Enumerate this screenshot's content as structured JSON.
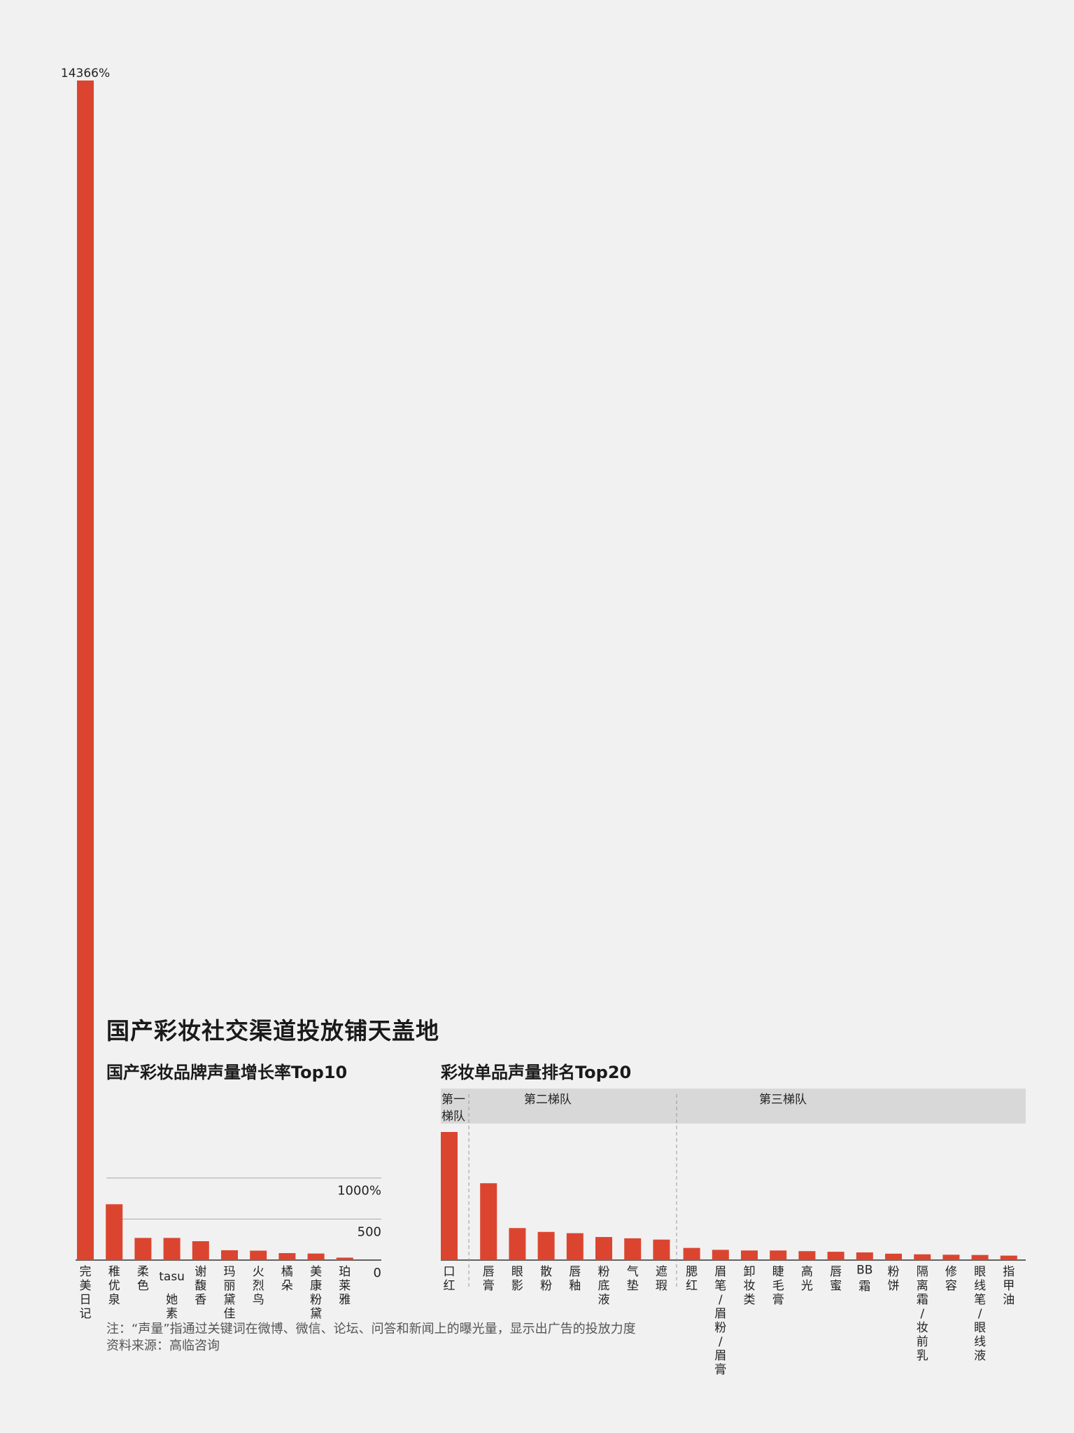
{
  "header": {
    "title": "国产彩妆社交渠道投放铺天盖地"
  },
  "chart_data": [
    {
      "type": "bar",
      "title": "国产彩妆品牌声量增长率Top10",
      "categories": [
        "完美日记",
        "稚优泉",
        "柔色",
        "tasu她素",
        "谢馥香",
        "玛丽黛佳",
        "火烈鸟",
        "橘朵",
        "美康粉黛",
        "珀莱雅"
      ],
      "values": [
        14366,
        680,
        270,
        270,
        230,
        120,
        115,
        85,
        80,
        30
      ],
      "data_labels": [
        "14366%",
        "",
        "",
        "",
        "",
        "",
        "",
        "",
        "",
        ""
      ],
      "ytick_labels": [
        "0",
        "500",
        "1000%"
      ],
      "yticks": [
        0,
        500,
        1000
      ],
      "ylim": [
        0,
        14366
      ],
      "color": "#db4530"
    },
    {
      "type": "bar",
      "title": "彩妆单品声量排名Top20",
      "categories": [
        "口红",
        "唇膏",
        "眼影",
        "散粉",
        "唇釉",
        "粉底液",
        "气垫",
        "遮瑕",
        "腮红",
        "眉笔/眉粉/眉膏",
        "卸妆类",
        "睫毛膏",
        "高光",
        "唇蜜",
        "BB霜",
        "粉饼",
        "隔离霜/妆前乳",
        "修容",
        "眼线笔/眼线液",
        "指甲油"
      ],
      "values": [
        100,
        60,
        25,
        22,
        21,
        18,
        17,
        16,
        9.5,
        8,
        7.5,
        7.5,
        7,
        6.5,
        6,
        5,
        4.5,
        4.2,
        4,
        3.5
      ],
      "groups": [
        {
          "label": "第一梯队",
          "start": 0,
          "end": 0
        },
        {
          "label": "第二梯队",
          "start": 1,
          "end": 7
        },
        {
          "label": "第三梯队",
          "start": 8,
          "end": 19
        }
      ],
      "color": "#db4530"
    }
  ],
  "footer": {
    "note": "注：“声量”指通过关键词在微博、微信、论坛、问答和新闻上的曝光量，显示出广告的投放力度",
    "source": "资料来源：高临咨询"
  }
}
